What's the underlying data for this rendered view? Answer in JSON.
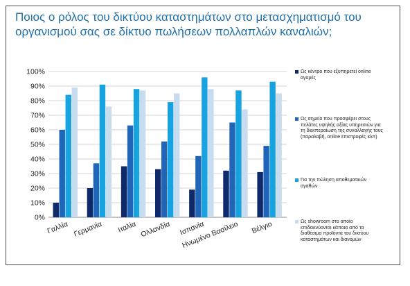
{
  "title": "Ποιος ο ρόλος του δικτύου καταστημάτων στο μετασχηματισμό του οργανισμού σας σε δίκτυο πωλήσεων πολλαπλών καναλιών;",
  "chart_data": {
    "type": "bar",
    "categories": [
      "Γαλλία",
      "Γερμανία",
      "Ιταλία",
      "Ολλανδία",
      "Ισπανία",
      "Ηνωμένο Βασίλειο",
      "Βέλγιο"
    ],
    "series": [
      {
        "name": "Ως κέντρο που εξυπηρετεί online αγορές",
        "color": "#0e2a6b",
        "values": [
          10,
          20,
          35,
          33,
          19,
          32,
          31
        ]
      },
      {
        "name": "Ως σημείο που προσφέρει στους πελάτες υψηλής αξίας υπηρεσιών για τη διεκπεραίωση της συναλλαγής τους (παραλαβή, online επιστροφές κλπ)",
        "color": "#1f66b9",
        "values": [
          60,
          37,
          63,
          52,
          42,
          65,
          49
        ]
      },
      {
        "name": "Για την πώληση αποθεματικών αγαθών",
        "color": "#17a2e0",
        "values": [
          84,
          91,
          88,
          79,
          96,
          87,
          93
        ]
      },
      {
        "name": "Ως showroom στο οποίο επιδεικνύονται κάποια από τα διαθέσιμα προϊόντα του δικτύου καταστημάτων και διανομών",
        "color": "#c8dcef",
        "values": [
          89,
          76,
          87,
          85,
          88,
          74,
          85
        ]
      }
    ],
    "ylim": [
      0,
      100
    ],
    "yticks": [
      "0%",
      "10%",
      "20%",
      "30%",
      "40%",
      "50%",
      "60%",
      "70%",
      "80%",
      "90%",
      "100%"
    ],
    "grid": true,
    "legend": "right"
  }
}
